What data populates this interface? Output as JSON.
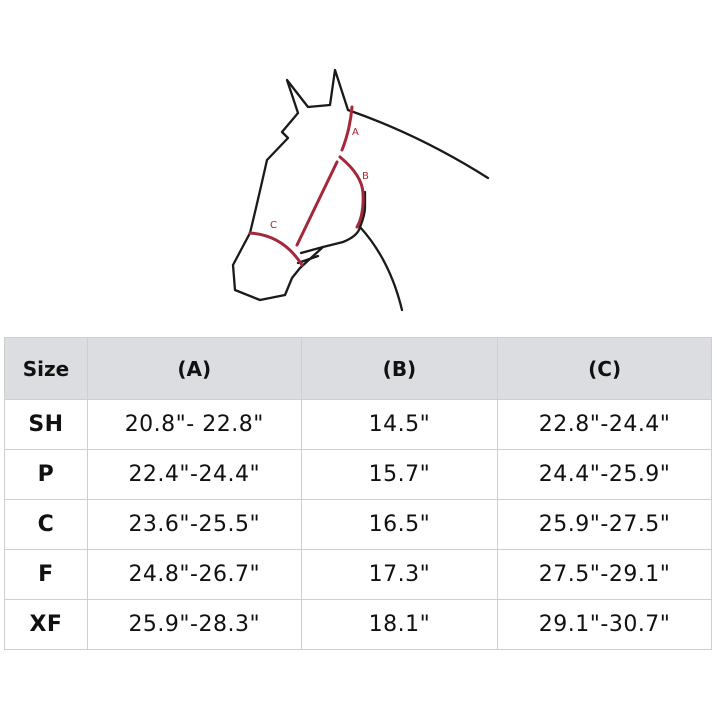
{
  "diagram": {
    "labels": {
      "a": "A",
      "b": "B",
      "c": "C"
    },
    "outline_color": "#1a1a1a",
    "measure_color": "#a3283a"
  },
  "table": {
    "headers": [
      "Size",
      "(A)",
      "(B)",
      "(C)"
    ],
    "rows": [
      {
        "size": "SH",
        "a": "20.8\"- 22.8\"",
        "b": "14.5\"",
        "c": "22.8\"-24.4\""
      },
      {
        "size": "P",
        "a": "22.4\"-24.4\"",
        "b": "15.7\"",
        "c": "24.4\"-25.9\""
      },
      {
        "size": "C",
        "a": "23.6\"-25.5\"",
        "b": "16.5\"",
        "c": "25.9\"-27.5\""
      },
      {
        "size": "F",
        "a": "24.8\"-26.7\"",
        "b": "17.3\"",
        "c": "27.5\"-29.1\""
      },
      {
        "size": "XF",
        "a": "25.9\"-28.3\"",
        "b": "18.1\"",
        "c": "29.1\"-30.7\""
      }
    ]
  }
}
